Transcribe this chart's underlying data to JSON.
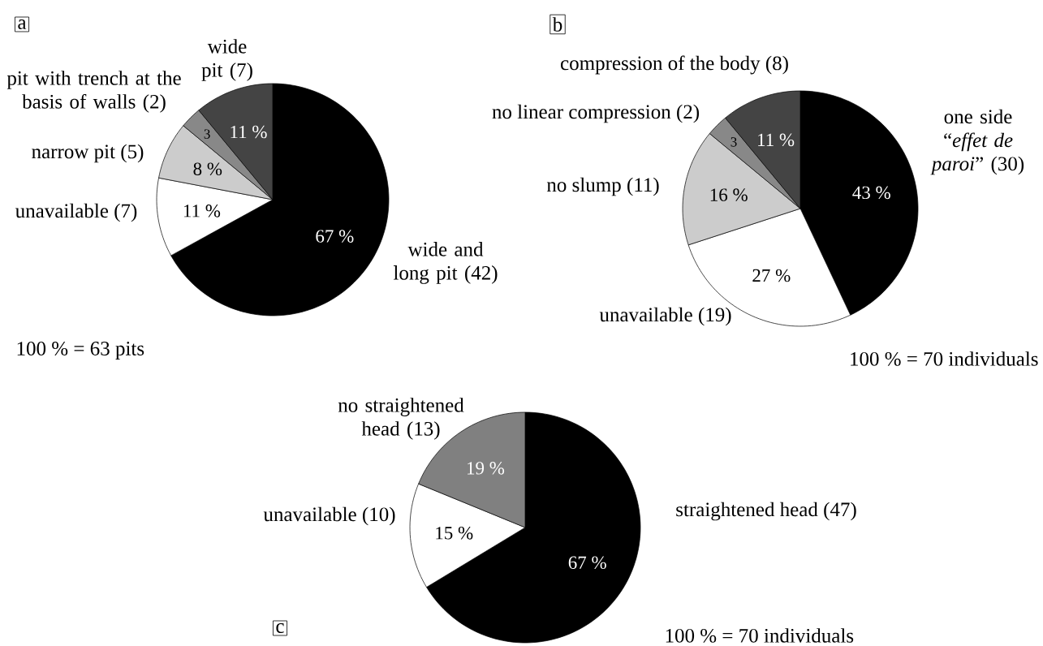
{
  "chart_data": [
    {
      "type": "pie",
      "title": "a",
      "categories": [
        "wide and long pit (42)",
        "unavailable (7)",
        "narrow pit (5)",
        "pit with trench at the basis of walls (2)",
        "wide pit (7)"
      ],
      "values": [
        67,
        11,
        8,
        3,
        11
      ],
      "colors": [
        "#000000",
        "#ffffff",
        "#cccccc",
        "#888888",
        "#444444"
      ],
      "value_labels": [
        "67 %",
        "11 %",
        "8 %",
        "3",
        "11 %"
      ],
      "annotations": [
        "100 % = 63 pits"
      ]
    },
    {
      "type": "pie",
      "title": "b",
      "categories": [
        "one side “*effet de paroi*” (30)",
        "unavailable (19)",
        "no slump (11)",
        "no linear compression (2)",
        "compression of the body (8)"
      ],
      "values": [
        43,
        27,
        16,
        3,
        11
      ],
      "colors": [
        "#000000",
        "#ffffff",
        "#cccccc",
        "#888888",
        "#444444"
      ],
      "value_labels": [
        "43 %",
        "27 %",
        "16 %",
        "3",
        "11 %"
      ],
      "annotations": [
        "100 % = 70 individuals"
      ]
    },
    {
      "type": "pie",
      "title": "c",
      "categories": [
        "straightened head (47)",
        "unavailable (10)",
        "no straightened head (13)"
      ],
      "values": [
        67,
        15,
        19
      ],
      "colors": [
        "#000000",
        "#ffffff",
        "#808080"
      ],
      "value_labels": [
        "67 %",
        "15 %",
        "19 %"
      ],
      "annotations": [
        "100 % = 70 individuals"
      ]
    }
  ]
}
